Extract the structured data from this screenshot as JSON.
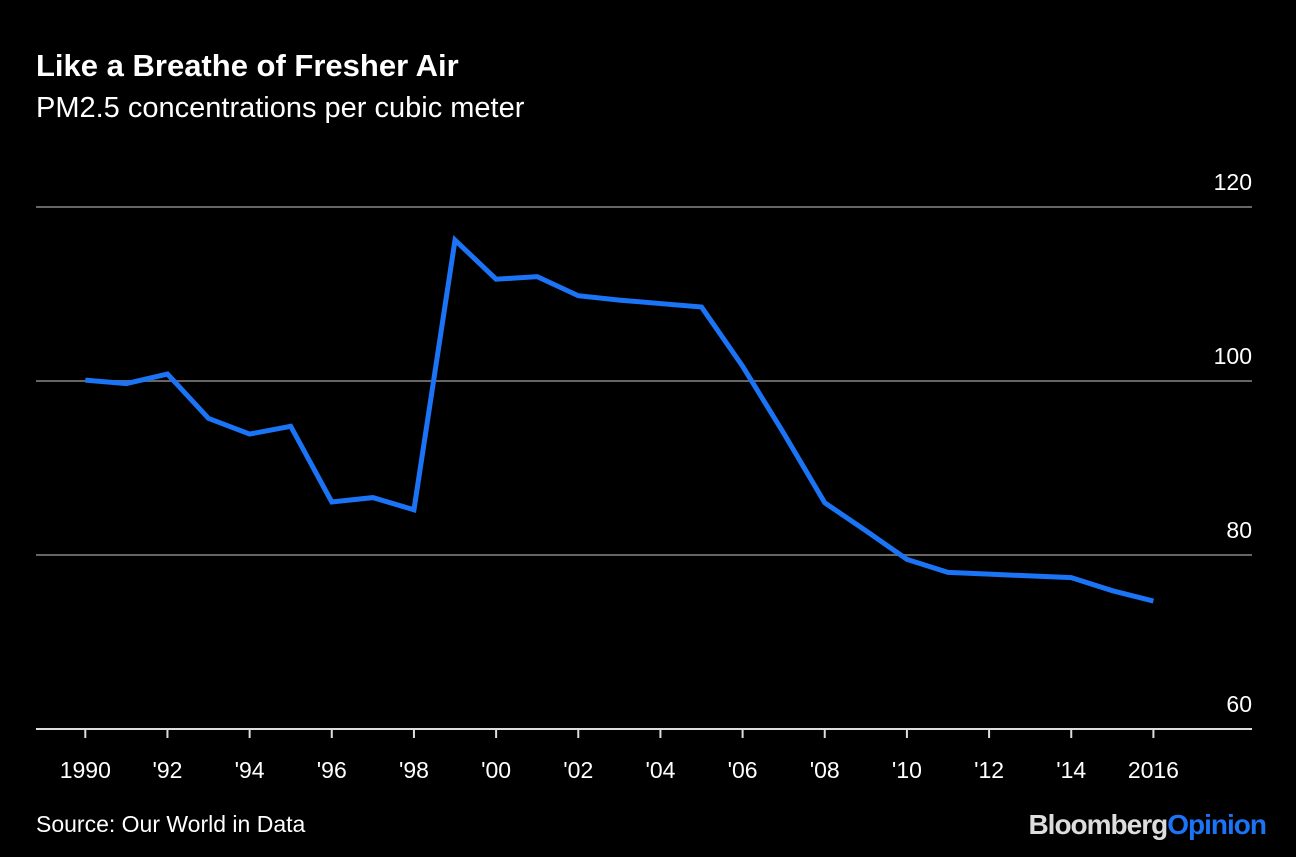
{
  "chart_data": {
    "type": "line",
    "title": "Like a Breathe of Fresher Air",
    "subtitle": "PM2.5 concentrations per cubic meter",
    "source": "Source: Our World in Data",
    "brand": [
      "Bloomberg",
      "Opinion"
    ],
    "x": [
      1990,
      1991,
      1992,
      1993,
      1994,
      1995,
      1996,
      1997,
      1998,
      1999,
      2000,
      2001,
      2002,
      2003,
      2004,
      2005,
      2006,
      2007,
      2008,
      2009,
      2010,
      2011,
      2012,
      2013,
      2014,
      2015,
      2016
    ],
    "values": [
      100.1,
      99.7,
      100.8,
      95.7,
      93.9,
      94.8,
      86.1,
      86.6,
      85.2,
      116.2,
      111.7,
      112.0,
      109.8,
      109.3,
      108.9,
      108.5,
      101.7,
      94.0,
      86.0,
      82.8,
      79.5,
      78.0,
      77.8,
      77.6,
      77.4,
      75.9,
      74.7
    ],
    "color": "#1b74f5",
    "xlim": [
      1988.8,
      2018.4
    ],
    "xticks": [
      1990,
      {
        "value": 1992,
        "label": "'92"
      },
      {
        "value": 1994,
        "label": "'94"
      },
      {
        "value": 1996,
        "label": "'96"
      },
      {
        "value": 1998,
        "label": "'98"
      },
      {
        "value": 2000,
        "label": "'00"
      },
      {
        "value": 2002,
        "label": "'02"
      },
      {
        "value": 2004,
        "label": "'04"
      },
      {
        "value": 2006,
        "label": "'06"
      },
      {
        "value": 2008,
        "label": "'08"
      },
      {
        "value": 2010,
        "label": "'10"
      },
      {
        "value": 2012,
        "label": "'12"
      },
      {
        "value": 2014,
        "label": "'14"
      },
      2016
    ],
    "ylim": [
      60,
      120
    ],
    "yticks": [
      60,
      80,
      100,
      120
    ],
    "grid": true
  }
}
